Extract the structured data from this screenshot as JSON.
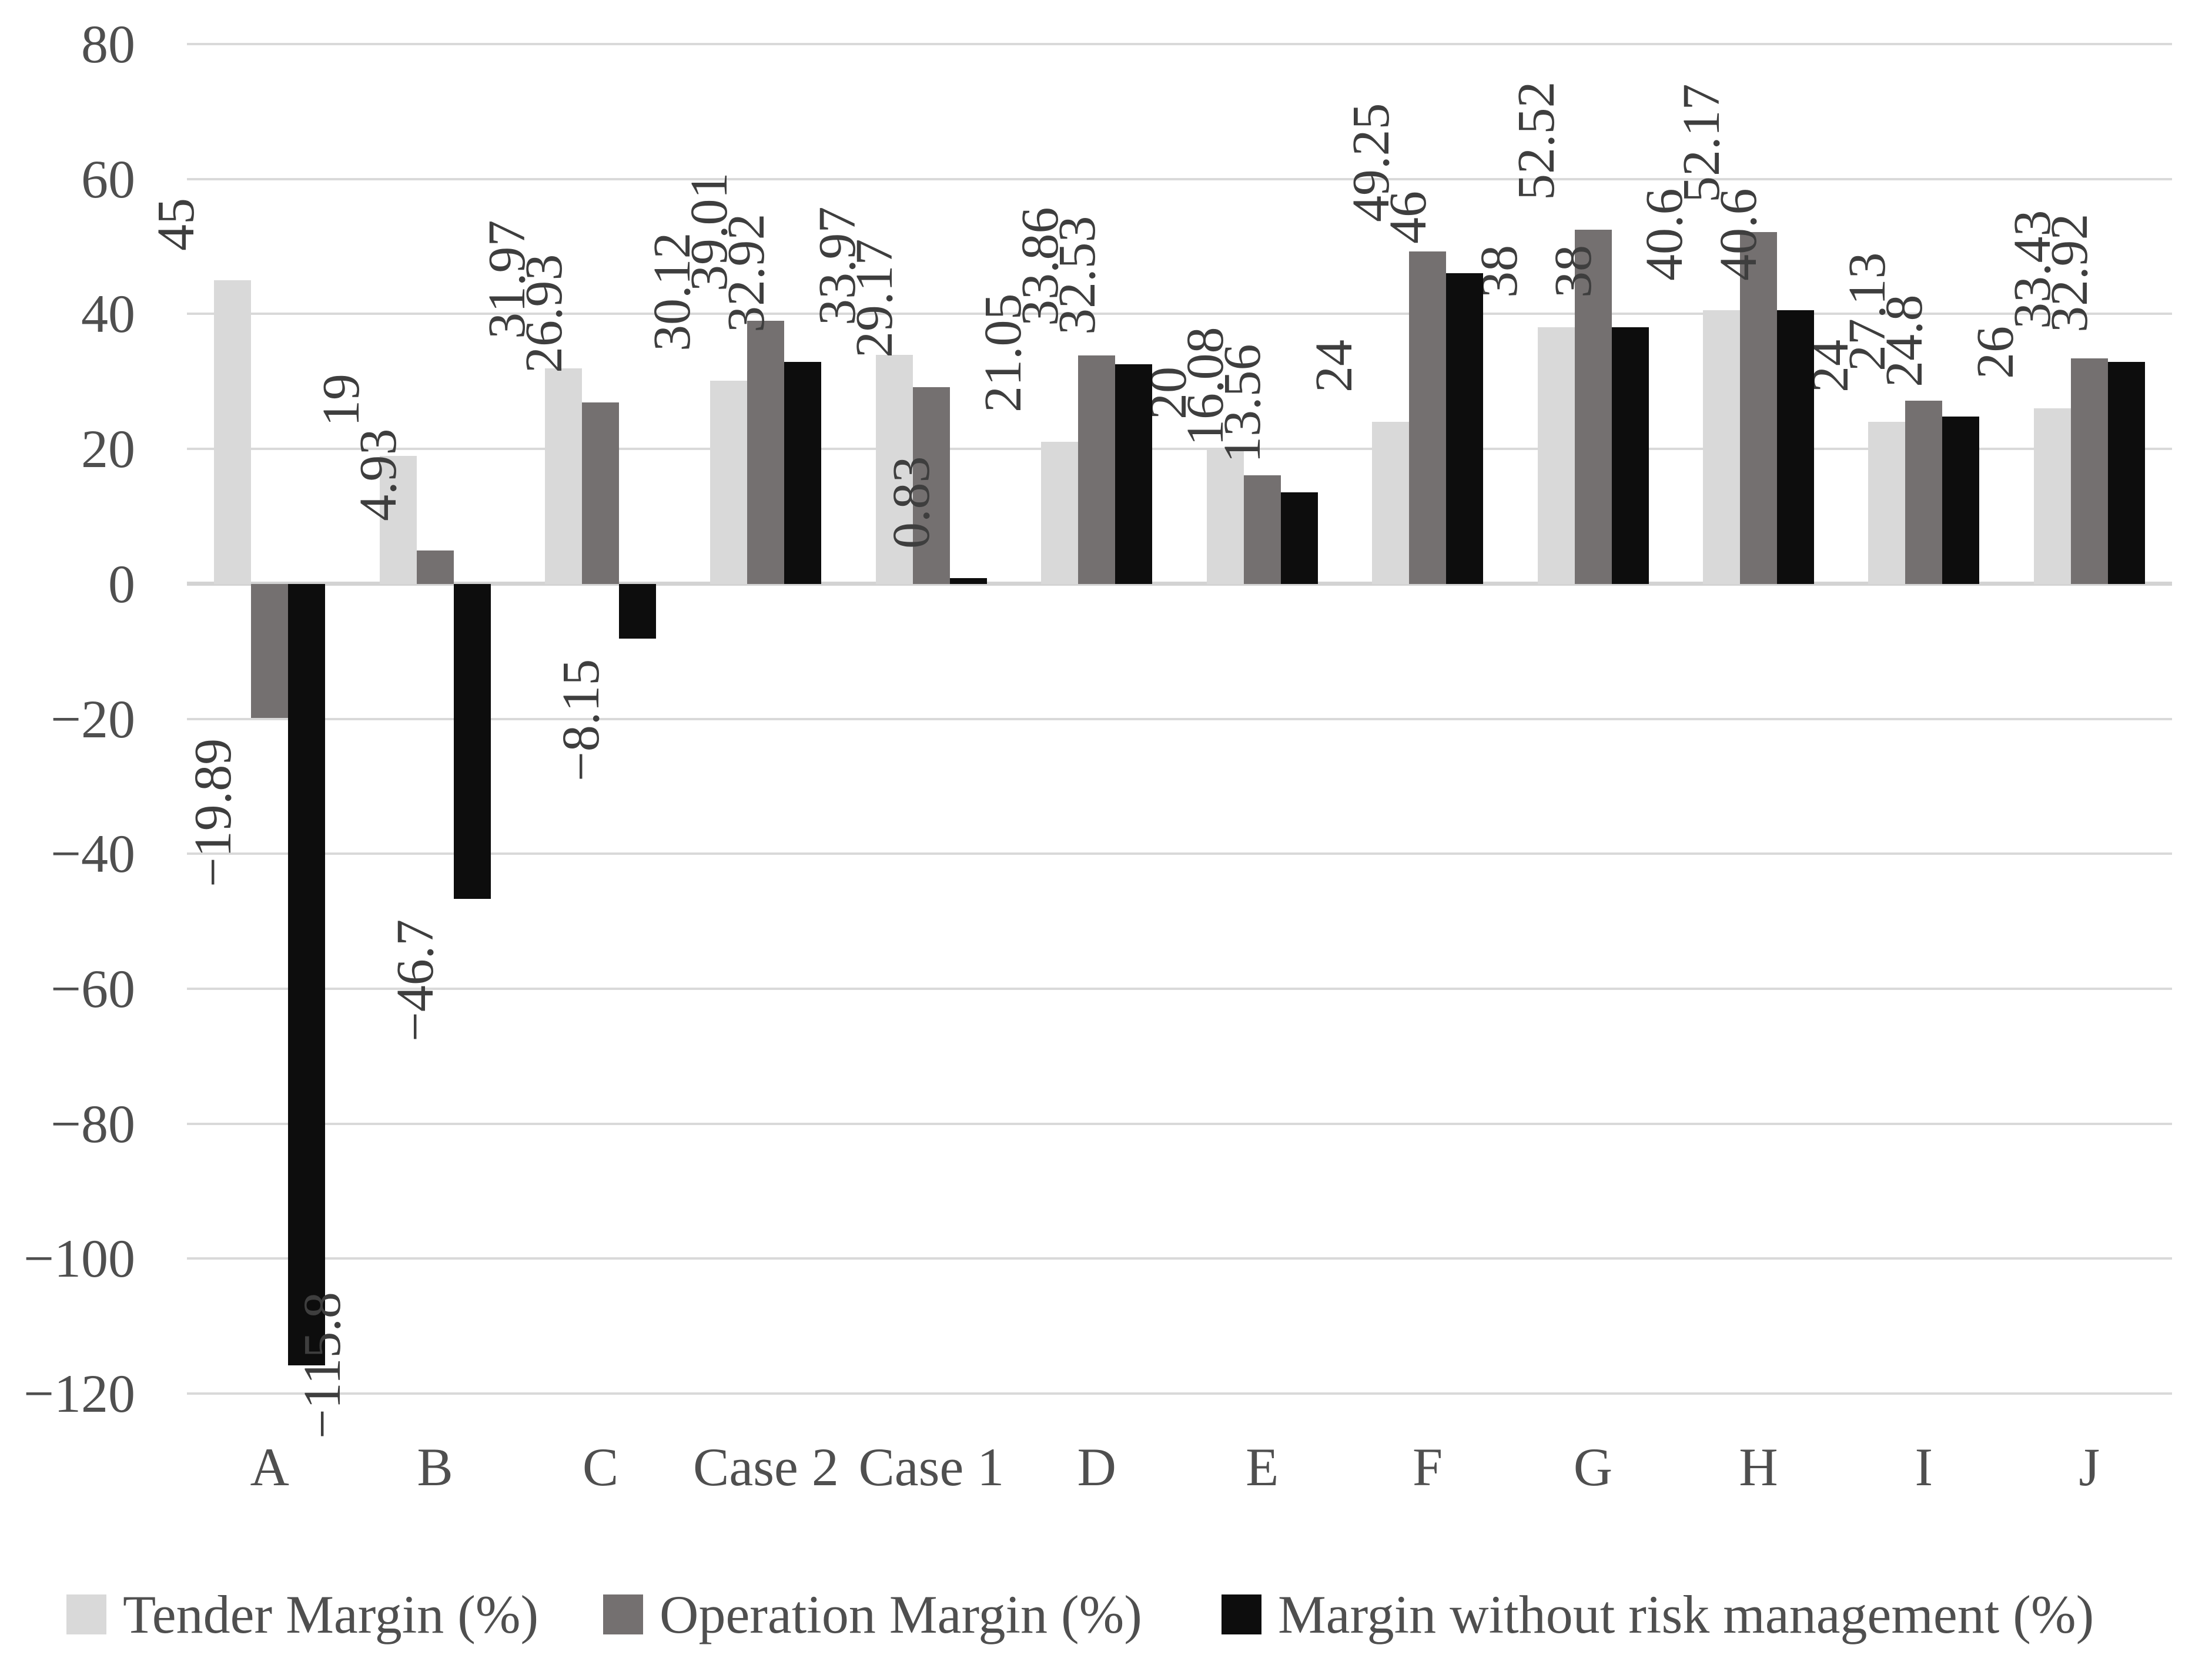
{
  "chart_data": {
    "type": "bar",
    "title": "",
    "xlabel": "",
    "ylabel": "",
    "categories": [
      "A",
      "B",
      "C",
      "Case 2",
      "Case 1",
      "D",
      "E",
      "F",
      "G",
      "H",
      "I",
      "J"
    ],
    "series": [
      {
        "name": "Tender Margin (%)",
        "color": "#d9d9d9",
        "values": [
          45,
          19,
          31.97,
          30.12,
          33.97,
          21.05,
          20,
          24,
          38,
          40.6,
          24,
          26
        ]
      },
      {
        "name": "Operation Margin (%)",
        "color": "#747070",
        "values": [
          -19.89,
          4.93,
          26.93,
          39.01,
          29.17,
          33.86,
          16.08,
          49.25,
          52.52,
          52.17,
          27.13,
          33.43
        ]
      },
      {
        "name": "Margin without risk management (%)",
        "color": "#0d0d0d",
        "values": [
          -115.8,
          -46.7,
          -8.15,
          32.92,
          0.83,
          32.53,
          13.56,
          46,
          38,
          40.6,
          24.8,
          32.92
        ]
      }
    ],
    "ylim": [
      -120,
      80
    ],
    "yticks": [
      80,
      60,
      40,
      20,
      0,
      -20,
      -40,
      -60,
      -80,
      -100,
      -120
    ],
    "grid": true,
    "legend_position": "bottom",
    "value_label_style": "rotated 90deg counterclockwise, outside end of bar"
  },
  "colors": {
    "background": "#ffffff",
    "gridline": "#d9d9d9",
    "zero_line": "#d3d3d3",
    "axis_text": "#4f4f4f",
    "value_label_text": "#3e3e3e"
  }
}
